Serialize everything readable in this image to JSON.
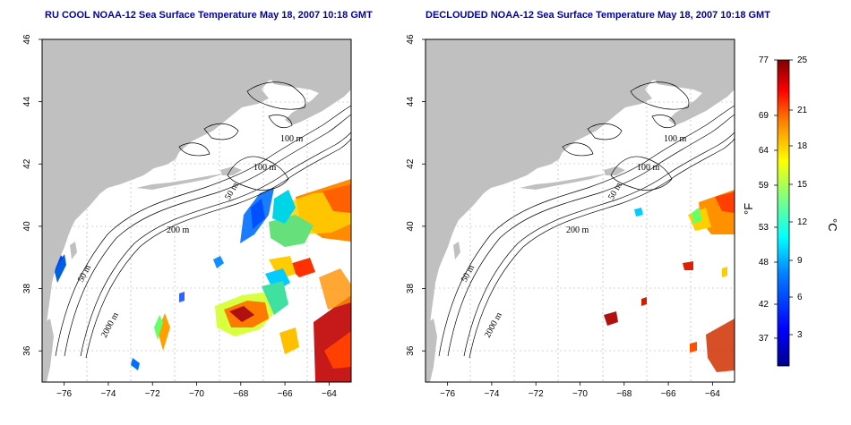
{
  "titles": {
    "left": "RU COOL NOAA-12 Sea Surface Temperature May 18, 2007 10:18 GMT",
    "right": "DECLOUDED NOAA-12 Sea Surface Temperature May 18, 2007 10:18 GMT"
  },
  "axes": {
    "lon_ticks": [
      -76,
      -74,
      -72,
      -70,
      -68,
      -66,
      -64
    ],
    "lat_ticks": [
      36,
      38,
      40,
      42,
      44,
      46
    ],
    "lon_range": [
      -77,
      -63
    ],
    "lat_range": [
      35,
      46
    ]
  },
  "contour_labels": {
    "left": [
      "100 m",
      "100 m",
      "50 m",
      "200 m",
      "50 m",
      "2000 m"
    ],
    "right": [
      "100 m",
      "100 m",
      "50 m",
      "200 m",
      "50 m",
      "2000 m"
    ]
  },
  "colorbar": {
    "fahrenheit_label": "°F",
    "celsius_label": "°C",
    "fahrenheit_ticks": [
      "77",
      "69",
      "64",
      "59",
      "53",
      "48",
      "42",
      "37"
    ],
    "celsius_ticks": [
      "25",
      "21",
      "18",
      "15",
      "12",
      "9",
      "6",
      "3"
    ],
    "colors": [
      "#00008f",
      "#0000ff",
      "#0080ff",
      "#00ffff",
      "#80ff80",
      "#ffff00",
      "#ff8000",
      "#ff0000",
      "#800000"
    ]
  },
  "colors": {
    "land": "#c0c0c0",
    "title": "#0000aa"
  }
}
